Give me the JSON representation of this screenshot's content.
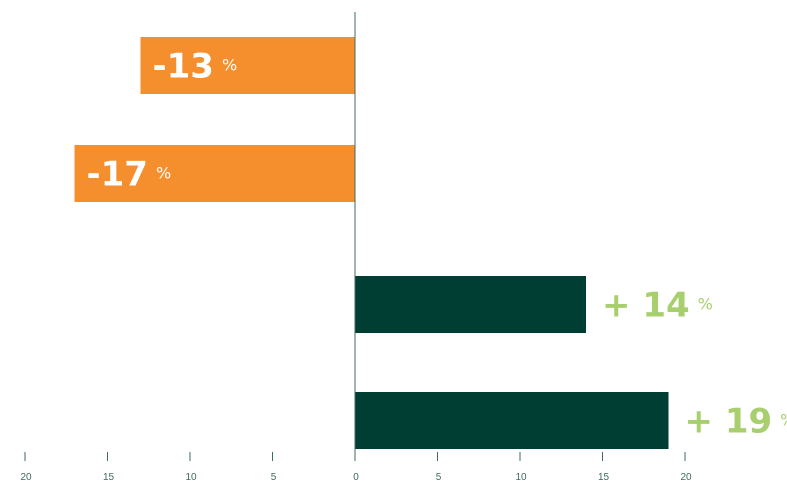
{
  "chart_data": {
    "type": "bar",
    "orientation": "horizontal",
    "categories": [
      "",
      "",
      "",
      ""
    ],
    "values": [
      -13,
      -17,
      14,
      19
    ],
    "data_labels": [
      {
        "number": "-13",
        "unit": "%"
      },
      {
        "number": "-17",
        "unit": "%"
      },
      {
        "number": "+ 14",
        "unit": "%"
      },
      {
        "number": "+ 19",
        "unit": "%"
      }
    ],
    "xlim": [
      -20,
      20
    ],
    "tick_values": [
      -20,
      -15,
      -10,
      -5,
      0,
      5,
      10,
      15,
      20
    ],
    "tick_labels": [
      "20",
      "15",
      "10",
      "5",
      "0",
      "5",
      "10",
      "15",
      "20"
    ],
    "grid": false,
    "title": "",
    "xlabel": "",
    "ylabel": "",
    "colors": {
      "negative_bar": "#f58f2d",
      "positive_bar": "#003d32",
      "negative_label": "#ffffff",
      "positive_label": "#a8cf6e",
      "axis": "#3f6b5a"
    }
  }
}
